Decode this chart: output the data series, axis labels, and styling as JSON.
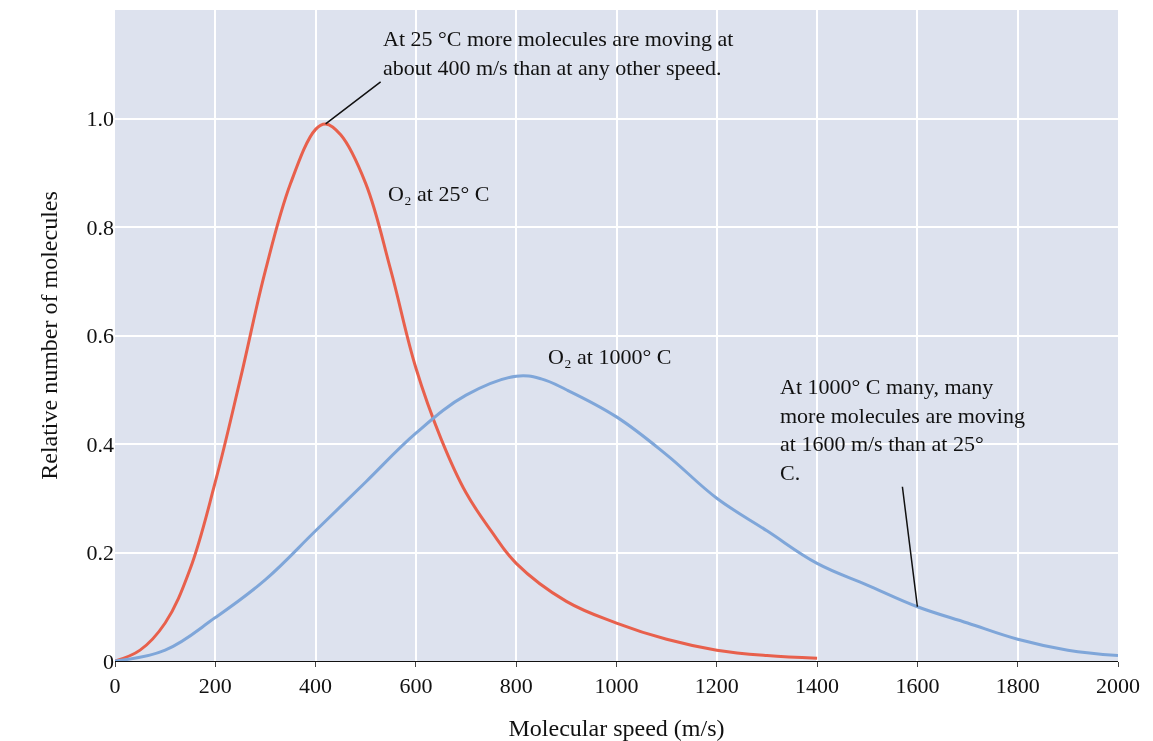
{
  "chart_data": {
    "type": "line",
    "xlabel": "Molecular speed (m/s)",
    "ylabel": "Relative number of molecules",
    "xlim": [
      0,
      2000
    ],
    "xticks": [
      0,
      200,
      400,
      600,
      800,
      1000,
      1200,
      1400,
      1600,
      1800,
      2000
    ],
    "ylim": [
      0,
      1.2
    ],
    "yticks": [
      0,
      0.2,
      0.4,
      0.6,
      0.8,
      {
        "value": 1,
        "label": "1.0"
      }
    ],
    "grid": true,
    "legend": false,
    "marker": "none",
    "line_style": "solid",
    "series": [
      {
        "name": "O₂ at 25° C",
        "color": "#e8604c",
        "x": [
          0,
          50,
          100,
          150,
          200,
          250,
          300,
          350,
          400,
          420,
          450,
          500,
          550,
          600,
          650,
          700,
          750,
          800,
          900,
          1000,
          1100,
          1200,
          1300,
          1400
        ],
        "values": [
          0,
          0.02,
          0.07,
          0.17,
          0.33,
          0.52,
          0.72,
          0.88,
          0.98,
          0.99,
          0.97,
          0.88,
          0.72,
          0.54,
          0.41,
          0.31,
          0.24,
          0.18,
          0.11,
          0.07,
          0.04,
          0.02,
          0.01,
          0.005
        ]
      },
      {
        "name": "O₂ at 1000° C",
        "color": "#7fa6d9",
        "x": [
          0,
          100,
          200,
          300,
          400,
          500,
          600,
          700,
          800,
          850,
          900,
          1000,
          1100,
          1200,
          1300,
          1400,
          1500,
          1600,
          1700,
          1800,
          1900,
          2000
        ],
        "values": [
          0,
          0.02,
          0.08,
          0.15,
          0.24,
          0.33,
          0.42,
          0.49,
          0.525,
          0.52,
          0.5,
          0.45,
          0.38,
          0.3,
          0.24,
          0.18,
          0.14,
          0.1,
          0.07,
          0.04,
          0.02,
          0.01
        ]
      }
    ],
    "annotations": [
      {
        "text": "At 25 °C more molecules are moving at about 400 m/s than at any other speed.",
        "x": 420,
        "y": 0.99
      },
      {
        "text": "At 1000° C many, many more molecules are moving at 1600 m/s than at 25° C.",
        "x": 1600,
        "y": 0.1
      }
    ]
  }
}
